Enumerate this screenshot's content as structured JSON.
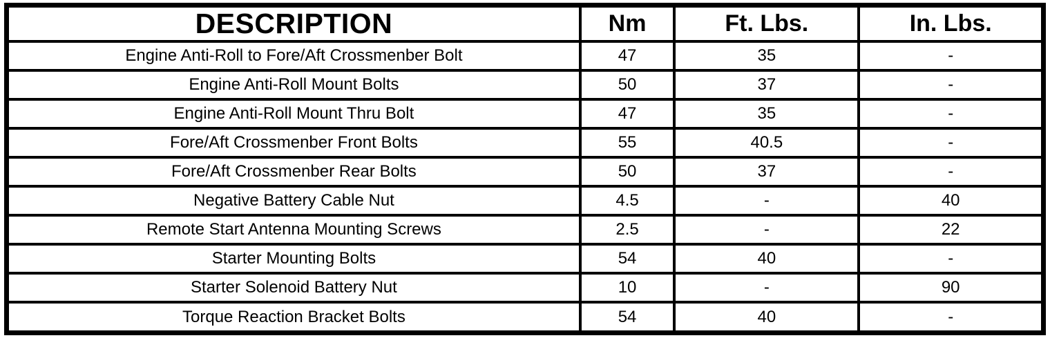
{
  "page": {
    "background_color": "#ffffff",
    "border_color": "#000000",
    "text_color": "#000000"
  },
  "table": {
    "title": "torque-specifications",
    "columns": {
      "description": "DESCRIPTION",
      "nm": "Nm",
      "ft_lbs": "Ft. Lbs.",
      "in_lbs": "In. Lbs."
    },
    "rows": [
      {
        "description": "Engine Anti-Roll to Fore/Aft Crossmenber Bolt",
        "nm": "47",
        "ft_lbs": "35",
        "in_lbs": "-"
      },
      {
        "description": "Engine Anti-Roll Mount Bolts",
        "nm": "50",
        "ft_lbs": "37",
        "in_lbs": "-"
      },
      {
        "description": "Engine Anti-Roll Mount Thru Bolt",
        "nm": "47",
        "ft_lbs": "35",
        "in_lbs": "-"
      },
      {
        "description": "Fore/Aft Crossmenber Front Bolts",
        "nm": "55",
        "ft_lbs": "40.5",
        "in_lbs": "-"
      },
      {
        "description": "Fore/Aft Crossmenber Rear Bolts",
        "nm": "50",
        "ft_lbs": "37",
        "in_lbs": "-"
      },
      {
        "description": "Negative Battery Cable Nut",
        "nm": "4.5",
        "ft_lbs": "-",
        "in_lbs": "40"
      },
      {
        "description": "Remote Start Antenna Mounting Screws",
        "nm": "2.5",
        "ft_lbs": "-",
        "in_lbs": "22"
      },
      {
        "description": "Starter Mounting Bolts",
        "nm": "54",
        "ft_lbs": "40",
        "in_lbs": "-"
      },
      {
        "description": "Starter Solenoid Battery Nut",
        "nm": "10",
        "ft_lbs": "-",
        "in_lbs": "90"
      },
      {
        "description": "Torque Reaction Bracket Bolts",
        "nm": "54",
        "ft_lbs": "40",
        "in_lbs": "-"
      }
    ]
  }
}
